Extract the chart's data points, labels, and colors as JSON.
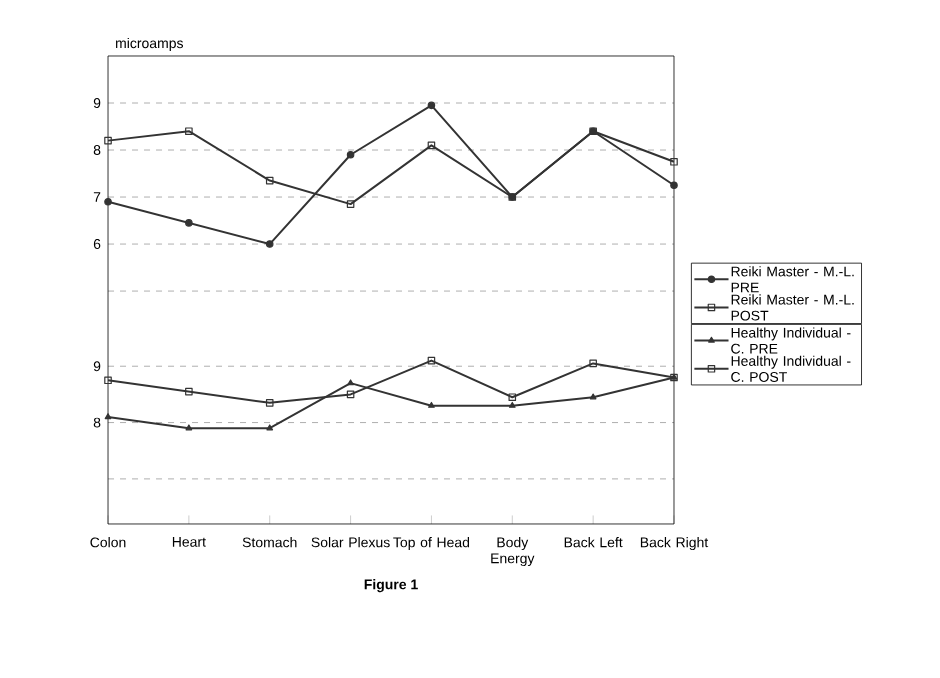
{
  "chart_data": [
    {
      "type": "line",
      "ylabel": "microamps",
      "categories": [
        null,
        null,
        null,
        null,
        null,
        null,
        null,
        null
      ],
      "ylim": [
        4.3,
        10
      ],
      "yticks": [
        {
          "value": 5,
          "label": null
        },
        6,
        7,
        8,
        9
      ],
      "grid": "y",
      "legend": "bottom right",
      "tick_labels": "y",
      "series": [
        {
          "name": "Reiki Master - M.-L. PRE",
          "color": "#333333",
          "marker": "circle",
          "values": [
            6.9,
            6.45,
            6.0,
            7.9,
            8.95,
            7.0,
            8.4,
            7.25
          ]
        },
        {
          "name": "Reiki Master - M.-L. POST",
          "color": "#333333",
          "marker": "square",
          "values": [
            8.2,
            8.4,
            7.35,
            6.85,
            8.1,
            7.0,
            8.4,
            7.75
          ]
        }
      ]
    },
    {
      "type": "line",
      "title": "Figure 1",
      "categories": [
        "Colon",
        "Heart",
        "Stomach",
        "Solar Plexus",
        "Top of Head",
        "Body Energy",
        "Back Left",
        "Back Right"
      ],
      "ylim": [
        6.2,
        9.75
      ],
      "yticks": [
        {
          "value": 7,
          "label": null
        },
        8,
        9
      ],
      "grid": "y",
      "legend": "top right",
      "series": [
        {
          "name": "Healthy Individual - C. PRE",
          "color": "#333333",
          "marker": "triangle",
          "values": [
            8.1,
            7.9,
            7.9,
            8.7,
            8.3,
            8.3,
            8.45,
            8.8
          ]
        },
        {
          "name": "Healthy Individual - C. POST",
          "color": "#333333",
          "marker": "square",
          "values": [
            8.75,
            8.55,
            8.35,
            8.5,
            9.1,
            8.45,
            9.05,
            8.8
          ]
        }
      ]
    }
  ]
}
